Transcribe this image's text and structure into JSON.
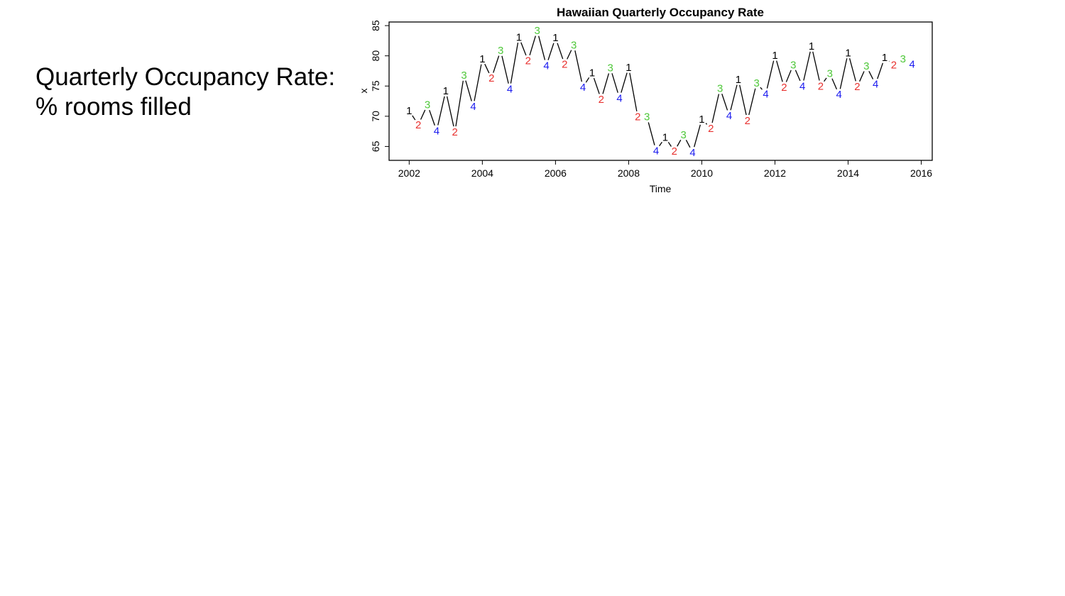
{
  "slide": {
    "title_line1": "Quarterly Occupancy Rate:",
    "title_line2": "% rooms filled"
  },
  "chart_data": {
    "type": "line",
    "title": "Hawaiian Quarterly Occupancy Rate",
    "xlabel": "Time",
    "ylabel": "x",
    "xlim": [
      2001.45,
      2016.3
    ],
    "ylim": [
      62.7,
      85.6
    ],
    "x_ticks": [
      2002,
      2004,
      2006,
      2008,
      2010,
      2012,
      2014,
      2016
    ],
    "y_ticks": [
      65,
      70,
      75,
      80,
      85
    ],
    "grid": false,
    "legend": "none",
    "start": 2002,
    "frequency": 4,
    "quarter_colors": {
      "1": "#000000",
      "2": "#e8312f",
      "3": "#4fc83a",
      "4": "#1a1aef"
    },
    "series": [
      {
        "values": [
          70.9,
          68.6,
          71.9,
          67.6,
          74.2,
          67.4,
          76.8,
          71.6,
          79.5,
          76.3,
          80.9,
          74.5,
          83.1,
          79.2,
          84.2,
          78.4,
          83.0,
          78.6,
          81.8,
          74.8,
          77.2,
          72.8,
          78.0,
          73.0,
          78.1,
          69.9,
          69.9,
          64.3,
          66.5,
          64.2,
          66.9,
          64.0,
          69.5,
          68.0,
          74.6,
          70.1,
          76.1,
          69.3,
          75.5,
          73.7,
          80.1,
          74.8,
          78.5,
          75.0,
          81.6,
          75.0,
          77.1,
          73.6,
          80.5,
          74.9,
          78.3,
          75.3,
          79.7,
          78.5,
          79.5,
          78.6
        ]
      }
    ]
  }
}
